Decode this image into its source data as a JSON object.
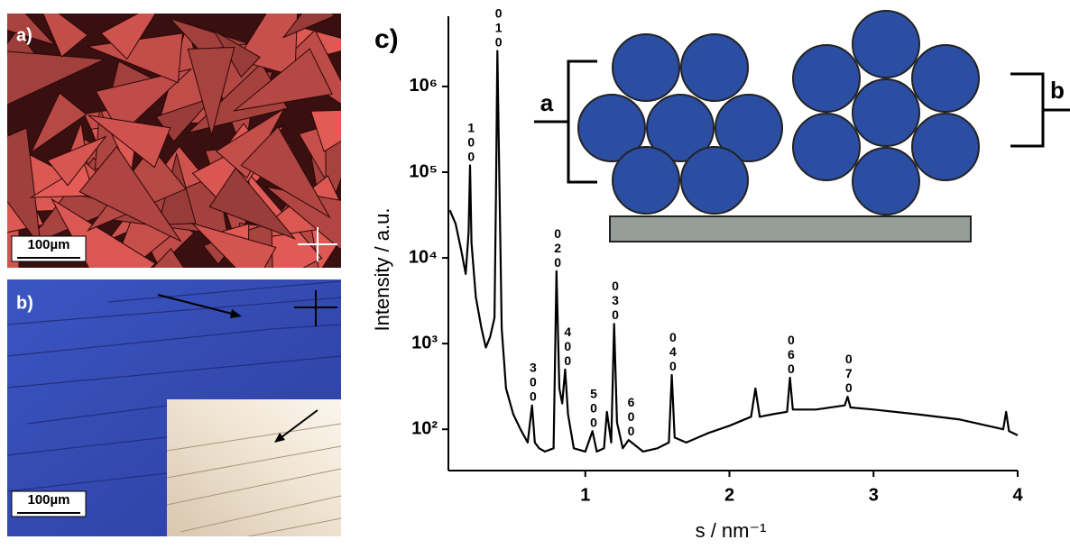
{
  "panels": {
    "a": {
      "label": "a)",
      "scale_bar": "100µm"
    },
    "b": {
      "label": "b)",
      "scale_bar": "100µm"
    }
  },
  "schematic": {
    "label_a": "a",
    "label_b": "b"
  },
  "chart_data": {
    "type": "line",
    "panel_label": "c)",
    "x_label": "s / nm⁻¹",
    "y_label": "Intensity / a.u.",
    "log_y": true,
    "xlim": [
      0.05,
      4
    ],
    "ylim": [
      33,
      6600000
    ],
    "xticks": [
      1,
      2,
      3,
      4
    ],
    "yticks": [
      {
        "value": 100,
        "label": "10²"
      },
      {
        "value": 1000,
        "label": "10³"
      },
      {
        "value": 10000,
        "label": "10⁴"
      },
      {
        "value": 100000,
        "label": "10⁵"
      },
      {
        "value": 1000000,
        "label": "10⁶"
      }
    ],
    "series": [
      {
        "color": "#000000",
        "x": [
          0.06,
          0.1,
          0.14,
          0.17,
          0.19,
          0.2,
          0.21,
          0.24,
          0.28,
          0.31,
          0.34,
          0.37,
          0.38,
          0.39,
          0.4,
          0.42,
          0.45,
          0.5,
          0.55,
          0.6,
          0.63,
          0.65,
          0.68,
          0.72,
          0.78,
          0.8,
          0.82,
          0.84,
          0.86,
          0.88,
          0.92,
          1.0,
          1.05,
          1.08,
          1.13,
          1.15,
          1.18,
          1.2,
          1.22,
          1.26,
          1.3,
          1.4,
          1.5,
          1.58,
          1.6,
          1.62,
          1.7,
          1.85,
          2.0,
          2.15,
          2.18,
          2.21,
          2.3,
          2.4,
          2.42,
          2.44,
          2.6,
          2.8,
          2.82,
          2.84,
          3.0,
          3.3,
          3.6,
          3.9,
          3.92,
          3.94,
          4.0
        ],
        "values": [
          36000,
          25000,
          12000,
          6500,
          20000,
          120000,
          15000,
          3500,
          1500,
          900,
          1200,
          2000,
          50000,
          2600000,
          200000,
          1500,
          300,
          150,
          100,
          70,
          190,
          70,
          60,
          55,
          60,
          7000,
          300,
          200,
          500,
          150,
          60,
          55,
          95,
          55,
          60,
          160,
          70,
          1700,
          120,
          60,
          75,
          55,
          60,
          70,
          430,
          80,
          70,
          90,
          110,
          140,
          300,
          140,
          150,
          160,
          400,
          170,
          170,
          190,
          240,
          180,
          170,
          150,
          130,
          100,
          160,
          95,
          85
        ]
      }
    ],
    "annotations": [
      {
        "label": "100",
        "x": 0.2,
        "y": 120000
      },
      {
        "label": "010",
        "x": 0.39,
        "y": 2600000
      },
      {
        "label": "300",
        "x": 0.63,
        "y": 190
      },
      {
        "label": "020",
        "x": 0.8,
        "y": 7000
      },
      {
        "label": "400",
        "x": 0.87,
        "y": 500
      },
      {
        "label": "500",
        "x": 1.05,
        "y": 95
      },
      {
        "label": "030",
        "x": 1.2,
        "y": 1700
      },
      {
        "label": "600",
        "x": 1.31,
        "y": 75
      },
      {
        "label": "040",
        "x": 1.6,
        "y": 430
      },
      {
        "label": "060",
        "x": 2.42,
        "y": 400
      },
      {
        "label": "070",
        "x": 2.82,
        "y": 240
      }
    ]
  }
}
